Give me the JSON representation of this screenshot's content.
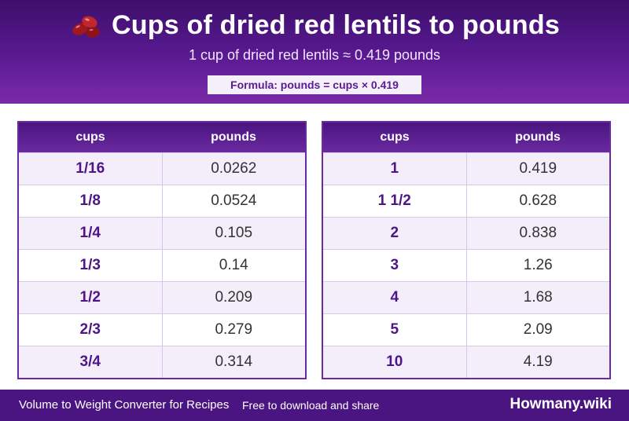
{
  "header": {
    "title": "Cups of dried red lentils to pounds",
    "subtitle": "1 cup of dried red lentils ≈ 0.419 pounds",
    "formula": "Formula: pounds = cups × 0.419",
    "icon": "red-beans-icon"
  },
  "tables": [
    {
      "col1": "cups",
      "col2": "pounds",
      "rows": [
        {
          "cups": "1/16",
          "pounds": "0.0262"
        },
        {
          "cups": "1/8",
          "pounds": "0.0524"
        },
        {
          "cups": "1/4",
          "pounds": "0.105"
        },
        {
          "cups": "1/3",
          "pounds": "0.14"
        },
        {
          "cups": "1/2",
          "pounds": "0.209"
        },
        {
          "cups": "2/3",
          "pounds": "0.279"
        },
        {
          "cups": "3/4",
          "pounds": "0.314"
        }
      ]
    },
    {
      "col1": "cups",
      "col2": "pounds",
      "rows": [
        {
          "cups": "1",
          "pounds": "0.419"
        },
        {
          "cups": "1 1/2",
          "pounds": "0.628"
        },
        {
          "cups": "2",
          "pounds": "0.838"
        },
        {
          "cups": "3",
          "pounds": "1.26"
        },
        {
          "cups": "4",
          "pounds": "1.68"
        },
        {
          "cups": "5",
          "pounds": "2.09"
        },
        {
          "cups": "10",
          "pounds": "4.19"
        }
      ]
    }
  ],
  "footer": {
    "description": "Volume to Weight Converter for Recipes",
    "note": "Free to download and share",
    "brand": "Howmany.wiki"
  },
  "colors": {
    "accent": "#5a1a92",
    "header_dark": "#3d0f6b",
    "row_alt": "#f3eefa"
  }
}
